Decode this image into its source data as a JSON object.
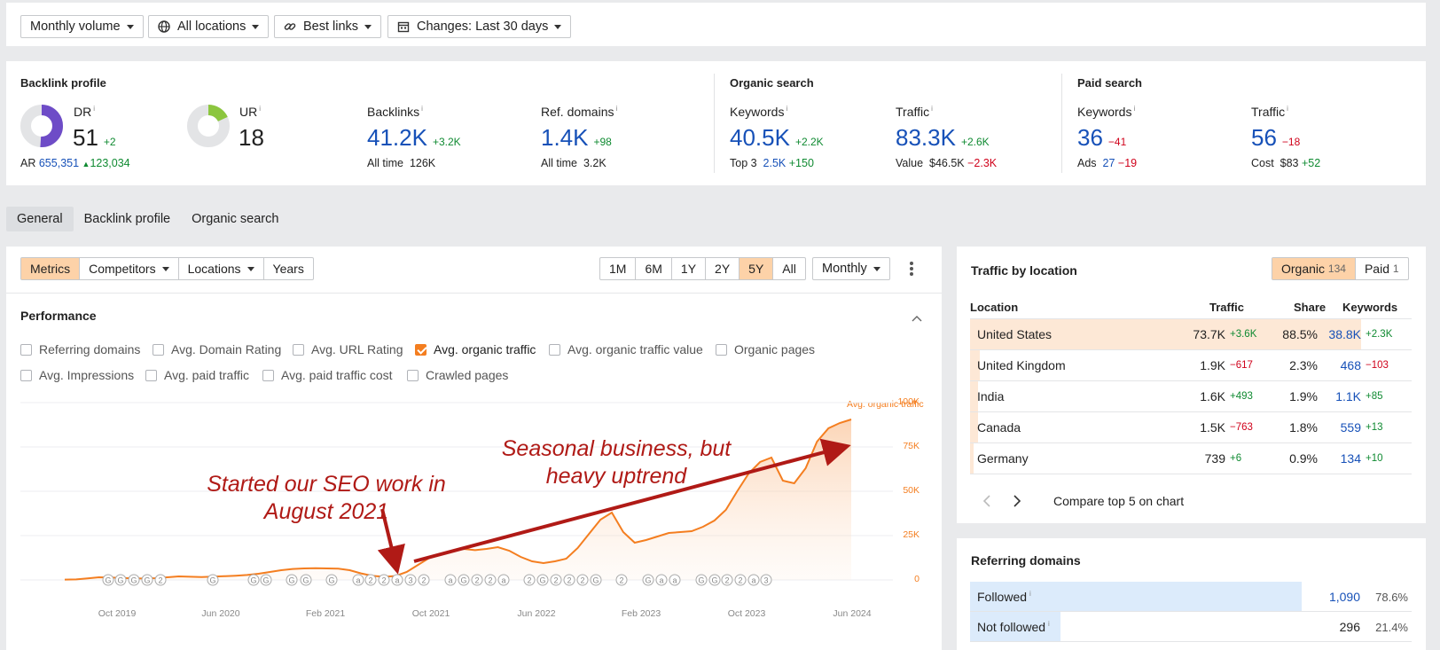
{
  "filters": {
    "volume": "Monthly volume",
    "locations": "All locations",
    "links": "Best links",
    "changes": "Changes: Last 30 days"
  },
  "backlink_profile": {
    "title": "Backlink profile",
    "dr": {
      "label": "DR",
      "value": "51",
      "delta": "+2",
      "fill": 0.51
    },
    "ar": {
      "label": "AR",
      "value": "655,351",
      "delta": "123,034"
    },
    "ur": {
      "label": "UR",
      "value": "18",
      "fill": 0.18
    },
    "backlinks": {
      "label": "Backlinks",
      "value": "41.2K",
      "delta": "+3.2K",
      "sub_label": "All time",
      "sub_value": "126K"
    },
    "ref_domains": {
      "label": "Ref. domains",
      "value": "1.4K",
      "delta": "+98",
      "sub_label": "All time",
      "sub_value": "3.2K"
    }
  },
  "organic_search": {
    "title": "Organic search",
    "keywords": {
      "label": "Keywords",
      "value": "40.5K",
      "delta": "+2.2K",
      "sub_label": "Top 3",
      "sub_value": "2.5K",
      "sub_delta": "+150"
    },
    "traffic": {
      "label": "Traffic",
      "value": "83.3K",
      "delta": "+2.6K",
      "sub_label": "Value",
      "sub_value": "$46.5K",
      "sub_delta": "−2.3K"
    }
  },
  "paid_search": {
    "title": "Paid search",
    "keywords": {
      "label": "Keywords",
      "value": "36",
      "delta": "−41",
      "sub_label": "Ads",
      "sub_value": "27",
      "sub_delta": "−19"
    },
    "traffic": {
      "label": "Traffic",
      "value": "56",
      "delta": "−18",
      "sub_label": "Cost",
      "sub_value": "$83",
      "sub_delta": "+52"
    }
  },
  "tabs": [
    "General",
    "Backlink profile",
    "Organic search"
  ],
  "toolbar": {
    "left": [
      "Metrics",
      "Competitors",
      "Locations",
      "Years"
    ],
    "ranges": [
      "1M",
      "6M",
      "1Y",
      "2Y",
      "5Y",
      "All"
    ],
    "interval": "Monthly"
  },
  "performance": {
    "title": "Performance",
    "checkboxes": [
      {
        "label": "Referring domains",
        "checked": false
      },
      {
        "label": "Avg. Domain Rating",
        "checked": false
      },
      {
        "label": "Avg. URL Rating",
        "checked": false
      },
      {
        "label": "Avg. organic traffic",
        "checked": true
      },
      {
        "label": "Avg. organic traffic value",
        "checked": false
      },
      {
        "label": "Organic pages",
        "checked": false
      },
      {
        "label": "Avg. Impressions",
        "checked": false
      },
      {
        "label": "Avg. paid traffic",
        "checked": false
      },
      {
        "label": "Avg. paid traffic cost",
        "checked": false
      },
      {
        "label": "Crawled pages",
        "checked": false
      }
    ]
  },
  "chart_data": {
    "type": "area",
    "series": [
      {
        "name": "Avg. organic traffic",
        "color": "#f47e20"
      }
    ],
    "y_ticks": [
      "100K",
      "75K",
      "50K",
      "25K",
      "0"
    ],
    "ylim": [
      0,
      100000
    ],
    "x_ticks": [
      "Oct 2019",
      "Jun 2020",
      "Feb 2021",
      "Oct 2021",
      "Jun 2022",
      "Feb 2023",
      "Oct 2023",
      "Jun 2024"
    ],
    "values": [
      200,
      300,
      900,
      1500,
      1400,
      1100,
      900,
      800,
      1000,
      1500,
      2000,
      1800,
      1600,
      1900,
      2100,
      2400,
      2800,
      3500,
      4500,
      5500,
      6200,
      6500,
      6600,
      6500,
      6400,
      5500,
      3700,
      2300,
      1800,
      2200,
      4500,
      8500,
      12500,
      14500,
      16500,
      17500,
      16800,
      17500,
      18500,
      16500,
      13000,
      10500,
      9500,
      10500,
      12000,
      18000,
      26000,
      34000,
      38000,
      27000,
      21000,
      22500,
      24500,
      26500,
      27000,
      27500,
      30000,
      33500,
      39500,
      50000,
      60000,
      66500,
      69000,
      56000,
      54500,
      63000,
      78000,
      85500,
      88500,
      90500
    ],
    "annotations": [
      "Started our SEO work in August 2021",
      "Seasonal business, but heavy uptrend"
    ],
    "markers": "G G G G 2 G G G G G G a 2 2 a 3 2 a G 2 2 a 2 G 2 2 2 G 2 G a a G G 2 2 a 3"
  },
  "traffic_by_location": {
    "title": "Traffic by location",
    "organic_label": "Organic",
    "organic_count": "134",
    "paid_label": "Paid",
    "paid_count": "1",
    "headers": [
      "Location",
      "Traffic",
      "Share",
      "Keywords"
    ],
    "rows": [
      {
        "location": "United States",
        "traffic": "73.7K",
        "traffic_delta": "+3.6K",
        "share": "88.5%",
        "share_value": 88.5,
        "keywords": "38.8K",
        "kw_delta": "+2.3K"
      },
      {
        "location": "United Kingdom",
        "traffic": "1.9K",
        "traffic_delta": "−617",
        "share": "2.3%",
        "share_value": 2.3,
        "keywords": "468",
        "kw_delta": "−103"
      },
      {
        "location": "India",
        "traffic": "1.6K",
        "traffic_delta": "+493",
        "share": "1.9%",
        "share_value": 1.9,
        "keywords": "1.1K",
        "kw_delta": "+85"
      },
      {
        "location": "Canada",
        "traffic": "1.5K",
        "traffic_delta": "−763",
        "share": "1.8%",
        "share_value": 1.8,
        "keywords": "559",
        "kw_delta": "+13"
      },
      {
        "location": "Germany",
        "traffic": "739",
        "traffic_delta": "+6",
        "share": "0.9%",
        "share_value": 0.9,
        "keywords": "134",
        "kw_delta": "+10"
      }
    ],
    "compare_label": "Compare top 5 on chart"
  },
  "referring_domains": {
    "title": "Referring domains",
    "rows": [
      {
        "label": "Followed",
        "value": "1,090",
        "pct": "78.6%",
        "share_value": 78.6
      },
      {
        "label": "Not followed",
        "value": "296",
        "pct": "21.4%",
        "share_value": 21.4
      }
    ]
  }
}
